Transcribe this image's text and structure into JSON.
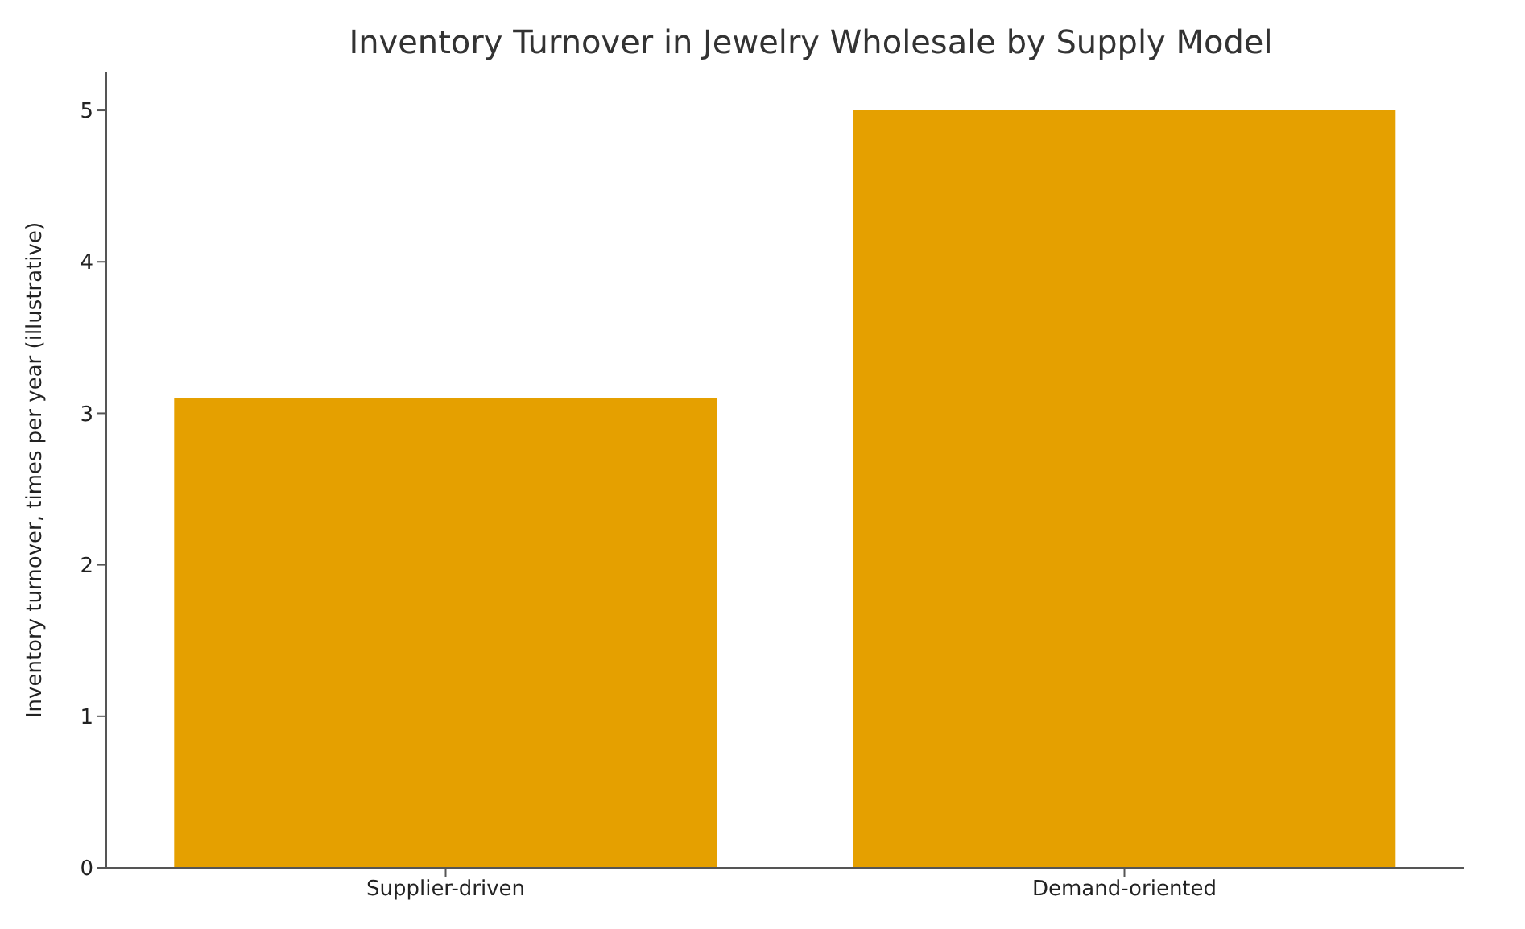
{
  "chart_data": {
    "type": "bar",
    "title": "Inventory Turnover in Jewelry Wholesale by Supply Model",
    "ylabel": "Inventory turnover, times per year (illustrative)",
    "categories": [
      "Supplier-driven",
      "Demand-oriented"
    ],
    "values": [
      3.1,
      5.0
    ],
    "color": "#e5a000",
    "ylim": [
      0,
      5.25
    ],
    "yticks": [
      0,
      1,
      2,
      3,
      4,
      5
    ],
    "grid": false,
    "legend": false
  }
}
